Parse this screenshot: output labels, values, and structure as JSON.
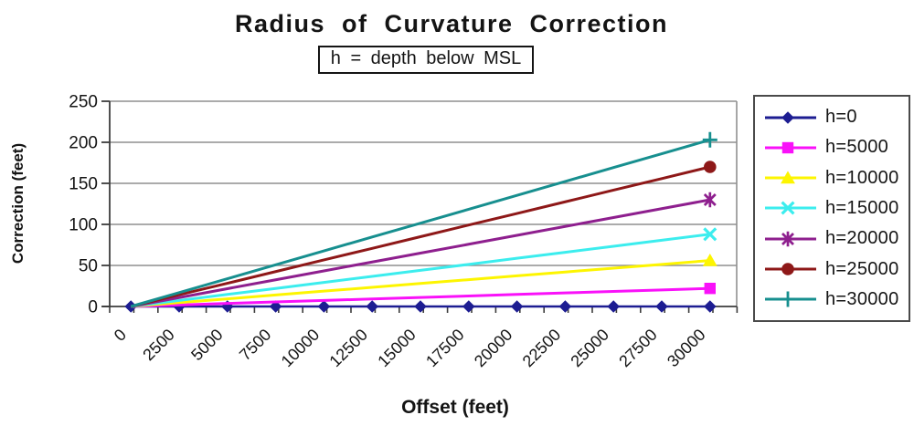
{
  "chart_data": {
    "type": "line",
    "title": "Radius of Curvature Correction",
    "subtitle": "h = depth below MSL",
    "xlabel": "Offset (feet)",
    "ylabel": "Correction (feet)",
    "x": [
      0,
      2500,
      5000,
      7500,
      10000,
      12500,
      15000,
      17500,
      20000,
      22500,
      25000,
      27500,
      30000
    ],
    "x_tick_labels": [
      "0",
      "2500",
      "5000",
      "7500",
      "10000",
      "12500",
      "15000",
      "17500",
      "20000",
      "22500",
      "25000",
      "27500",
      "30000"
    ],
    "y_ticks": [
      0,
      50,
      100,
      150,
      200,
      250
    ],
    "ylim": [
      0,
      250
    ],
    "grid": true,
    "legend_position": "right",
    "series": [
      {
        "name": "h=0",
        "color": "#1d1d92",
        "marker": "diamond",
        "marker_on": "all",
        "values": [
          0,
          0,
          0,
          0,
          0,
          0,
          0,
          0,
          0,
          0,
          0,
          0,
          0
        ]
      },
      {
        "name": "h=5000",
        "color": "#f911f9",
        "marker": "square",
        "marker_on": "last",
        "values": [
          0,
          1.8,
          3.7,
          5.5,
          7.3,
          9.2,
          11,
          12.8,
          14.7,
          16.5,
          18.3,
          20.2,
          22
        ]
      },
      {
        "name": "h=10000",
        "color": "#fdf500",
        "marker": "triangle",
        "marker_on": "last",
        "values": [
          0,
          4.7,
          9.3,
          14,
          18.7,
          23.3,
          28,
          32.7,
          37.3,
          42,
          46.7,
          51.3,
          56
        ]
      },
      {
        "name": "h=15000",
        "color": "#3cedee",
        "marker": "x",
        "marker_on": "last",
        "values": [
          0,
          7.3,
          14.7,
          22,
          29.3,
          36.7,
          44,
          51.3,
          58.7,
          66,
          73.3,
          80.7,
          88
        ]
      },
      {
        "name": "h=20000",
        "color": "#8e1f8e",
        "marker": "star",
        "marker_on": "last",
        "values": [
          0,
          10.8,
          21.7,
          32.5,
          43.3,
          54.2,
          65,
          75.8,
          86.7,
          97.5,
          108.3,
          119.2,
          130
        ]
      },
      {
        "name": "h=25000",
        "color": "#8e1818",
        "marker": "circle",
        "marker_on": "last",
        "values": [
          0,
          14.2,
          28.3,
          42.5,
          56.7,
          70.8,
          85,
          99.2,
          113.3,
          127.5,
          141.7,
          155.8,
          170
        ]
      },
      {
        "name": "h=30000",
        "color": "#178f8f",
        "marker": "plus",
        "marker_on": "last",
        "values": [
          0,
          16.9,
          33.8,
          50.8,
          67.7,
          84.6,
          101.5,
          118.4,
          135.3,
          152.3,
          169.2,
          186.1,
          203
        ]
      }
    ],
    "colors": {
      "gridline": "#8f8f8f",
      "axis": "#3c3c3c",
      "text": "#141414"
    }
  }
}
